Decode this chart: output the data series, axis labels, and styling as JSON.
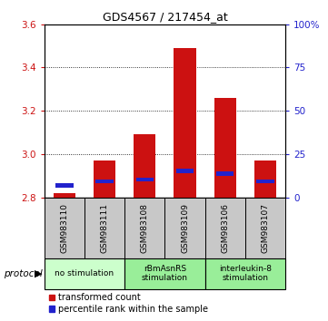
{
  "title": "GDS4567 / 217454_at",
  "samples": [
    "GSM983110",
    "GSM983111",
    "GSM983108",
    "GSM983109",
    "GSM983106",
    "GSM983107"
  ],
  "red_values": [
    2.82,
    2.97,
    3.09,
    3.49,
    3.26,
    2.97
  ],
  "blue_values": [
    2.855,
    2.875,
    2.882,
    2.922,
    2.91,
    2.875
  ],
  "y_min": 2.8,
  "y_max": 3.6,
  "y_ticks_left": [
    2.8,
    3.0,
    3.2,
    3.4,
    3.6
  ],
  "y_ticks_right": [
    0,
    25,
    50,
    75,
    100
  ],
  "right_tick_labels": [
    "0",
    "25",
    "50",
    "75",
    "100%"
  ],
  "group_bounds": [
    {
      "start": 0,
      "end": 1,
      "label": "no stimulation",
      "color": "#ccffcc"
    },
    {
      "start": 2,
      "end": 3,
      "label": "rBmAsnRS\nstimulation",
      "color": "#99ee99"
    },
    {
      "start": 4,
      "end": 5,
      "label": "interleukin-8\nstimulation",
      "color": "#99ee99"
    }
  ],
  "protocol_label": "protocol",
  "legend_red": "transformed count",
  "legend_blue": "percentile rank within the sample",
  "bar_width": 0.55,
  "red_color": "#cc1111",
  "blue_color": "#2222cc",
  "gray_box_color": "#c8c8c8",
  "title_fontsize": 9,
  "tick_fontsize": 7.5,
  "label_fontsize": 6.5,
  "legend_fontsize": 7
}
